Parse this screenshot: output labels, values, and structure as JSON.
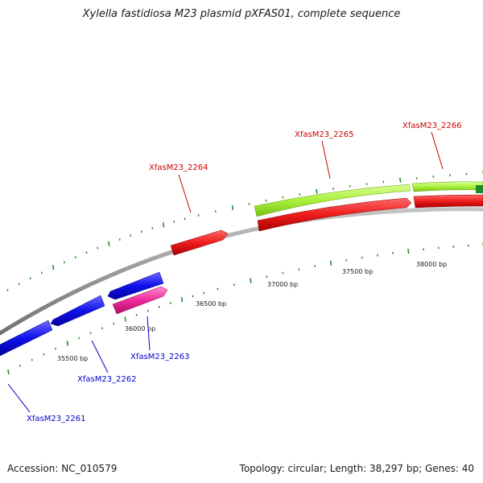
{
  "title": "Xylella fastidiosa M23 plasmid pXFAS01, complete sequence",
  "footer": {
    "accession": "Accession: NC_010579",
    "summary": "Topology: circular; Length: 38,297 bp; Genes: 40"
  },
  "colors": {
    "backbone": "#8a8a8a",
    "tick": "#2e8b2e",
    "gene_forward_red": "#ee1c1c",
    "gene_reverse_blue": "#1010ee",
    "gene_magenta": "#ee2a9a",
    "gene_lime": "#aaf03c",
    "label_red": "#cc0000",
    "label_blue": "#0000cc"
  },
  "bp_labels": [
    "35500 bp",
    "36000 bp",
    "36500 bp",
    "37000 bp",
    "37500 bp",
    "38000 bp"
  ],
  "gene_labels": [
    {
      "id": "g2261",
      "text": "XfasM23_2261",
      "color": "blue"
    },
    {
      "id": "g2262",
      "text": "XfasM23_2262",
      "color": "blue"
    },
    {
      "id": "g2263",
      "text": "XfasM23_2263",
      "color": "blue"
    },
    {
      "id": "g2264",
      "text": "XfasM23_2264",
      "color": "red"
    },
    {
      "id": "g2265",
      "text": "XfasM23_2265",
      "color": "red"
    },
    {
      "id": "g2266",
      "text": "XfasM23_2266",
      "color": "red"
    }
  ]
}
